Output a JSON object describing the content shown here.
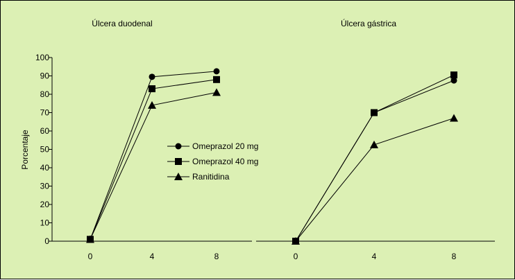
{
  "chart_data": [
    {
      "type": "line",
      "title": "Úlcera duodenal",
      "xlabel": "",
      "ylabel": "Porcentaje",
      "x": [
        0,
        4,
        8
      ],
      "ylim": [
        0,
        100
      ],
      "yticks": [
        0,
        10,
        20,
        30,
        40,
        50,
        60,
        70,
        80,
        90,
        100
      ],
      "grid": false,
      "legend_position": "center-right",
      "series": [
        {
          "name": "Omeprazol 20 mg",
          "marker": "circle",
          "values": [
            1,
            89.5,
            92.5
          ]
        },
        {
          "name": "Omeprazol 40 mg",
          "marker": "square",
          "values": [
            1,
            83,
            88
          ]
        },
        {
          "name": "Ranitidina",
          "marker": "triangle",
          "values": [
            1,
            74,
            81
          ]
        }
      ]
    },
    {
      "type": "line",
      "title": "Úlcera gástrica",
      "xlabel": "",
      "ylabel": "",
      "x": [
        0,
        4,
        8
      ],
      "ylim": [
        0,
        100
      ],
      "grid": false,
      "series": [
        {
          "marker": "circle",
          "values": [
            0,
            70,
            87.5
          ]
        },
        {
          "marker": "square",
          "values": [
            0,
            70,
            90.5
          ]
        },
        {
          "marker": "triangle",
          "values": [
            0,
            52.5,
            67
          ]
        }
      ]
    }
  ],
  "colors": {
    "background": "#dcf0b4",
    "ink": "#000000"
  }
}
